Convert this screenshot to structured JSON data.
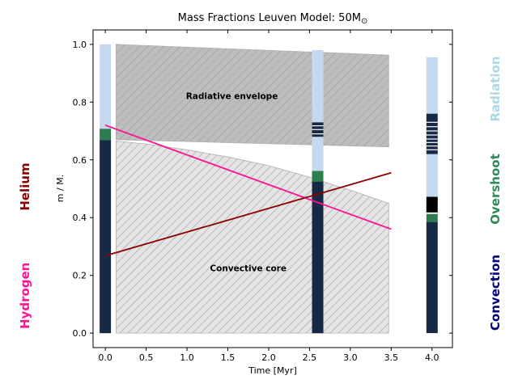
{
  "chart_data": {
    "type": "area",
    "title": "Mass Fractions Leuven Model: 50M",
    "title_symbol": "⊙",
    "xlabel": "Time [Myr]",
    "ylabel": "m / M.",
    "xlim": [
      -0.15,
      4.25
    ],
    "ylim": [
      -0.05,
      1.05
    ],
    "xticks": [
      0.0,
      0.5,
      1.0,
      1.5,
      2.0,
      2.5,
      3.0,
      3.5,
      4.0
    ],
    "xtick_labels": [
      "0.0",
      "0.5",
      "1.0",
      "1.5",
      "2.0",
      "2.5",
      "3.0",
      "3.5",
      "4.0"
    ],
    "yticks": [
      0.0,
      0.2,
      0.4,
      0.6,
      0.8,
      1.0
    ],
    "ytick_labels": [
      "0.0",
      "0.2",
      "0.4",
      "0.6",
      "0.8",
      "1.0"
    ],
    "grid": false,
    "regions": [
      {
        "name": "Radiative envelope",
        "color": "#bdbdbd",
        "upper": {
          "x": [
            0.13,
            3.47
          ],
          "y": [
            1.0,
            0.963
          ]
        },
        "lower": {
          "x": [
            0.13,
            3.47
          ],
          "y": [
            0.67,
            0.645
          ]
        }
      },
      {
        "name": "Convective core",
        "color": "#e4e4e4",
        "upper": {
          "x": [
            0.13,
            0.5,
            1.0,
            1.5,
            2.0,
            2.5,
            3.0,
            3.47
          ],
          "y": [
            0.665,
            0.655,
            0.635,
            0.61,
            0.58,
            0.54,
            0.495,
            0.45
          ]
        },
        "lower": {
          "x": [
            0.13,
            3.47
          ],
          "y": [
            0.0,
            0.0
          ]
        }
      }
    ],
    "series": [
      {
        "name": "Hydrogen",
        "color": "#ff1493",
        "x": [
          0.0,
          3.5
        ],
        "y": [
          0.72,
          0.36
        ]
      },
      {
        "name": "Helium",
        "color": "#8b0000",
        "x": [
          0.0,
          3.5
        ],
        "y": [
          0.268,
          0.555
        ]
      }
    ],
    "columns": [
      {
        "x": 0.0,
        "segments": [
          {
            "from": 0.0,
            "to": 0.668,
            "color": "#172a45"
          },
          {
            "from": 0.668,
            "to": 0.708,
            "color": "#2e7d4f"
          },
          {
            "from": 0.708,
            "to": 1.0,
            "color": "#c5d8ef"
          }
        ]
      },
      {
        "x": 2.6,
        "segments": [
          {
            "from": 0.0,
            "to": 0.525,
            "color": "#172a45"
          },
          {
            "from": 0.525,
            "to": 0.562,
            "color": "#2e7d4f"
          },
          {
            "from": 0.562,
            "to": 0.68,
            "color": "#c5d8ef"
          },
          {
            "from": 0.68,
            "to": 0.73,
            "color": "#172a45"
          },
          {
            "from": 0.73,
            "to": 0.98,
            "color": "#c5d8ef"
          }
        ],
        "stripes": [
          0.69,
          0.705,
          0.718
        ]
      },
      {
        "x": 4.0,
        "segments": [
          {
            "from": 0.0,
            "to": 0.385,
            "color": "#172a45"
          },
          {
            "from": 0.385,
            "to": 0.413,
            "color": "#2e7d4f"
          },
          {
            "from": 0.413,
            "to": 0.418,
            "color": "#ffffff"
          },
          {
            "from": 0.418,
            "to": 0.472,
            "color": "#000000"
          },
          {
            "from": 0.472,
            "to": 0.62,
            "color": "#c5d8ef"
          },
          {
            "from": 0.62,
            "to": 0.76,
            "color": "#172a45"
          },
          {
            "from": 0.76,
            "to": 0.955,
            "color": "#c5d8ef"
          }
        ],
        "stripes": [
          0.635,
          0.648,
          0.66,
          0.672,
          0.686,
          0.7,
          0.715,
          0.73
        ]
      }
    ],
    "annotations": [
      {
        "text": "Radiative envelope",
        "x": 1.55,
        "y": 0.81
      },
      {
        "text": "Convective core",
        "x": 1.75,
        "y": 0.215
      }
    ]
  },
  "side_labels": {
    "hydrogen": "Hydrogen",
    "helium": "Helium",
    "radiation": "Radiation",
    "overshoot": "Overshoot",
    "convection": "Convection"
  },
  "colors": {
    "hydrogen": "#ff1493",
    "helium": "#8b0000",
    "radiation": "#add8e6",
    "overshoot": "#2e8b57",
    "convection": "#000080"
  }
}
